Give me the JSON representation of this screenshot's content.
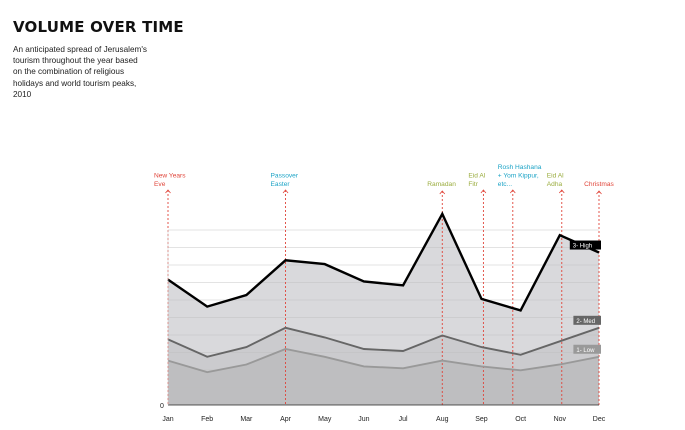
{
  "header": {
    "title": "VOLUME OVER TIME",
    "subtitle": "An anticipated spread of Jerusalem's tourism throughout the year based on the combination of religious holidays and world tourism peaks, 2010"
  },
  "colors": {
    "christian": "#e0453a",
    "jewish": "#1ba3c6",
    "muslim": "#9aac3d",
    "high": "#000000",
    "med": "#666666",
    "low": "#999999",
    "fill_high": "#d9d9dc",
    "fill_med": "#c9c9cc",
    "fill_low": "#bcbcbf"
  },
  "chart_data": {
    "type": "area",
    "categories": [
      "Jan",
      "Feb",
      "Mar",
      "Apr",
      "May",
      "Jun",
      "Jul",
      "Aug",
      "Sep",
      "Oct",
      "Nov",
      "Dec"
    ],
    "y_zero_label": "0",
    "ylim": [
      0,
      100
    ],
    "grid": true,
    "series": [
      {
        "name": "3- High",
        "color": "#000000",
        "values": [
          65,
          51,
          57,
          75,
          73,
          64,
          62,
          99,
          55,
          49,
          88,
          79
        ]
      },
      {
        "name": "2- Med",
        "color": "#666666",
        "values": [
          34,
          25,
          30,
          40,
          35,
          29,
          28,
          36,
          30,
          26,
          33,
          40
        ]
      },
      {
        "name": "1- Low",
        "color": "#999999",
        "values": [
          23,
          17,
          21,
          29,
          25,
          20,
          19,
          23,
          20,
          18,
          21,
          25
        ]
      }
    ],
    "annotations": [
      {
        "label": "New Years Eve",
        "lines": [
          "New Years",
          "Eve"
        ],
        "x": 0.0,
        "group": "christian"
      },
      {
        "label": "Passover Easter",
        "lines": [
          "Passover",
          "Easter"
        ],
        "x": 3.0,
        "group": "jewish"
      },
      {
        "label": "Ramadan",
        "lines": [
          "Ramadan"
        ],
        "x": 7.0,
        "group": "muslim"
      },
      {
        "label": "Eid Al Fitr",
        "lines": [
          "Eid Al",
          "Fitr"
        ],
        "x": 8.05,
        "group": "muslim"
      },
      {
        "label": "Rosh Hashana + Yom Kippur, etc...",
        "lines": [
          "Rosh Hashana",
          "+ Yom Kippur,",
          "etc..."
        ],
        "x": 8.8,
        "group": "jewish"
      },
      {
        "label": "Eid Al Adha",
        "lines": [
          "Eid Al",
          "Adha"
        ],
        "x": 10.05,
        "group": "muslim"
      },
      {
        "label": "Christmas",
        "lines": [
          "Christmas"
        ],
        "x": 11.0,
        "group": "christian"
      }
    ]
  }
}
